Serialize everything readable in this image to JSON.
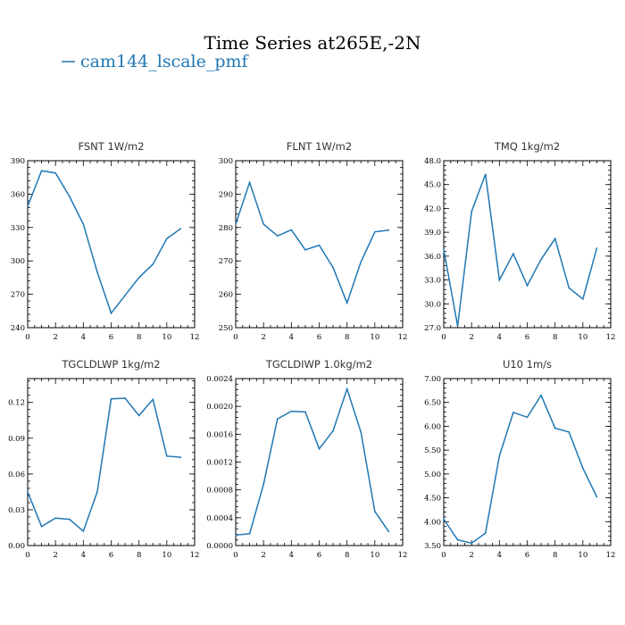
{
  "figure": {
    "title": "Time Series at265E,-2N",
    "legend_label": "cam144_lscale_pmf",
    "series_color": "#1f77b4"
  },
  "chart_data": [
    {
      "type": "line",
      "title": "FSNT   1W/m2",
      "xlim": [
        0,
        12
      ],
      "ylim": [
        240,
        390
      ],
      "xticks": [
        0,
        2,
        4,
        6,
        8,
        10,
        12
      ],
      "yticks": [
        240,
        270,
        300,
        330,
        360,
        390
      ],
      "ytick_labels": [
        "240",
        "270",
        "300",
        "330",
        "360",
        "390"
      ],
      "x": [
        0,
        1,
        2,
        3,
        4,
        5,
        6,
        7,
        8,
        9,
        10,
        11
      ],
      "values": [
        349,
        381,
        379,
        358,
        333,
        290,
        253,
        269,
        285,
        297,
        320,
        329
      ]
    },
    {
      "type": "line",
      "title": "FLNT   1W/m2",
      "xlim": [
        0,
        12
      ],
      "ylim": [
        250,
        300
      ],
      "xticks": [
        0,
        2,
        4,
        6,
        8,
        10,
        12
      ],
      "yticks": [
        250,
        260,
        270,
        280,
        290,
        300
      ],
      "ytick_labels": [
        "250",
        "260",
        "270",
        "280",
        "290",
        "300"
      ],
      "x": [
        0,
        1,
        2,
        3,
        4,
        5,
        6,
        7,
        8,
        9,
        10,
        11
      ],
      "values": [
        281,
        293.5,
        281,
        277.5,
        279.3,
        273.3,
        274.7,
        268,
        257.4,
        269.7,
        278.7,
        279.2
      ]
    },
    {
      "type": "line",
      "title": "TMQ   1kg/m2",
      "xlim": [
        0,
        12
      ],
      "ylim": [
        27,
        48
      ],
      "xticks": [
        0,
        2,
        4,
        6,
        8,
        10,
        12
      ],
      "yticks": [
        27,
        30,
        33,
        36,
        39,
        42,
        45,
        48
      ],
      "ytick_labels": [
        "27.0",
        "30.0",
        "33.0",
        "36.0",
        "39.0",
        "42.0",
        "45.0",
        "48.0"
      ],
      "x": [
        0,
        1,
        2,
        3,
        4,
        5,
        6,
        7,
        8,
        9,
        10,
        11
      ],
      "values": [
        36.8,
        27.2,
        41.6,
        46.3,
        33.0,
        36.3,
        32.3,
        35.6,
        38.2,
        32.0,
        30.6,
        37.0
      ]
    },
    {
      "type": "line",
      "title": "TGCLDLWP   1kg/m2",
      "xlim": [
        0,
        12
      ],
      "ylim": [
        0,
        0.14
      ],
      "xticks": [
        0,
        2,
        4,
        6,
        8,
        10,
        12
      ],
      "yticks": [
        0,
        0.03,
        0.06,
        0.09,
        0.12
      ],
      "ytick_labels": [
        "0.00",
        "0.03",
        "0.06",
        "0.09",
        "0.12"
      ],
      "x": [
        0,
        1,
        2,
        3,
        4,
        5,
        6,
        7,
        8,
        9,
        10,
        11
      ],
      "values": [
        0.045,
        0.016,
        0.023,
        0.022,
        0.012,
        0.045,
        0.123,
        0.1235,
        0.109,
        0.1225,
        0.075,
        0.074
      ]
    },
    {
      "type": "line",
      "title": "TGCLDIWP   1.0kg/m2",
      "xlim": [
        0,
        12
      ],
      "ylim": [
        0,
        0.0024
      ],
      "xticks": [
        0,
        2,
        4,
        6,
        8,
        10,
        12
      ],
      "yticks": [
        0,
        0.0004,
        0.0008,
        0.0012,
        0.0016,
        0.002,
        0.0024
      ],
      "ytick_labels": [
        "0.0000",
        "0.0004",
        "0.0008",
        "0.0012",
        "0.0016",
        "0.0020",
        "0.0024"
      ],
      "x": [
        0,
        1,
        2,
        3,
        4,
        5,
        6,
        7,
        8,
        9,
        10,
        11
      ],
      "values": [
        0.00015,
        0.00017,
        0.00088,
        0.00182,
        0.00193,
        0.00192,
        0.00139,
        0.00165,
        0.00225,
        0.00163,
        0.00049,
        0.0002
      ]
    },
    {
      "type": "line",
      "title": "U10   1m/s",
      "xlim": [
        0,
        12
      ],
      "ylim": [
        3.5,
        7.0
      ],
      "xticks": [
        0,
        2,
        4,
        6,
        8,
        10,
        12
      ],
      "yticks": [
        3.5,
        4.0,
        4.5,
        5.0,
        5.5,
        6.0,
        6.5,
        7.0
      ],
      "ytick_labels": [
        "3.50",
        "4.00",
        "4.50",
        "5.00",
        "5.50",
        "6.00",
        "6.50",
        "7.00"
      ],
      "x": [
        0,
        1,
        2,
        3,
        4,
        5,
        6,
        7,
        8,
        9,
        10,
        11
      ],
      "values": [
        4.05,
        3.62,
        3.55,
        3.76,
        5.38,
        6.29,
        6.19,
        6.65,
        5.96,
        5.88,
        5.12,
        4.52
      ]
    }
  ]
}
